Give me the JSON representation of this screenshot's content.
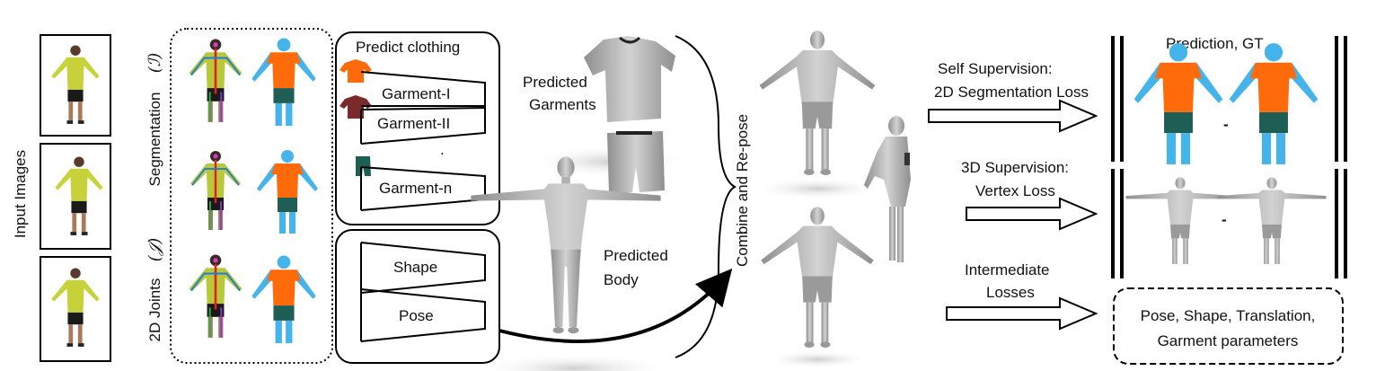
{
  "input_images": {
    "label": "Input Images"
  },
  "annotations": {
    "segmentation": "Segmentation",
    "segmentation_symbol": "(ℐ)",
    "joints": "2D Joints",
    "joints_symbol": "(𝒥)"
  },
  "clothing_net": {
    "title": "Predict clothing",
    "garments": [
      "Garment-I",
      "Garment-II",
      "Garment-n"
    ],
    "dots": "."
  },
  "body_net": {
    "stages": [
      "Shape",
      "Pose"
    ]
  },
  "predicted_garments": {
    "line1": "Predicted",
    "line2": "Garments"
  },
  "predicted_body": {
    "line1": "Predicted",
    "line2": "Body"
  },
  "combine": {
    "label": "Combine and Re-pose"
  },
  "losses": {
    "self_sup": {
      "line1": "Self Supervision:",
      "line2": "2D Segmentation Loss"
    },
    "sup_3d": {
      "line1": "3D Supervision:",
      "line2": "Vertex Loss"
    },
    "intermediate": {
      "line1": "Intermediate",
      "line2": "Losses"
    }
  },
  "prediction_gt": {
    "label": "Prediction, GT"
  },
  "minus": "-",
  "params_box": {
    "line1": "Pose, Shape, Translation,",
    "line2": "Garment parameters"
  },
  "colors": {
    "shirt_green": "#c7d23a",
    "seg_shirt": "#ff6a0a",
    "seg_skin": "#45b4ea",
    "seg_pants": "#1f5e54",
    "mesh_gray": "#a9a9a9",
    "garment_brown": "#7a2a2a",
    "joint_red": "#e0201a"
  }
}
